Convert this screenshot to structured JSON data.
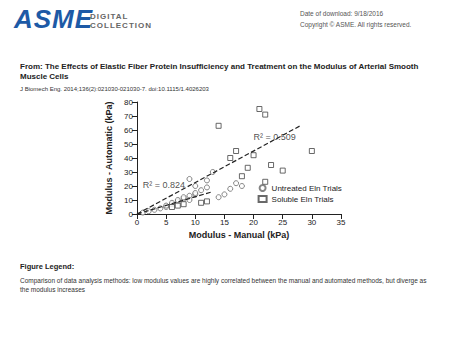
{
  "header": {
    "logo": {
      "brand": "ASME",
      "subtitle": "DIGITAL COLLECTION"
    },
    "download_date": "Date of download:  9/18/2016",
    "copyright": "Copyright © ASME. All rights reserved."
  },
  "article": {
    "from": "From: The Effects of Elastic Fiber Protein Insufficiency and Treatment on the Modulus of Arterial Smooth Muscle Cells",
    "citation": "J Biomech Eng. 2014;136(2):021030-021030-7. doi:10.1115/1.4026203"
  },
  "chart_data": {
    "type": "scatter",
    "x_label": "Modulus - Manual (kPa)",
    "y_label": "Modulus - Automatic (kPa)",
    "xlim": [
      0,
      35
    ],
    "xticks": [
      0,
      5,
      10,
      15,
      20,
      25,
      30,
      35
    ],
    "ylim": [
      0,
      80
    ],
    "yticks": [
      0,
      10,
      20,
      30,
      40,
      50,
      60,
      70,
      80
    ],
    "grid": false,
    "legend": "lower right",
    "series": [
      {
        "name": "Untreated Eln Trials",
        "color": "#666666",
        "marker": "circle",
        "x": [
          1,
          2,
          3,
          4,
          5,
          5,
          6,
          6,
          7,
          7,
          8,
          8,
          9,
          9,
          10,
          10,
          11,
          12,
          12,
          13,
          9,
          14,
          15,
          16,
          17,
          18,
          10
        ],
        "values": [
          1,
          2,
          3,
          4,
          5,
          6,
          7,
          8,
          9,
          10,
          11,
          12,
          13,
          10,
          14,
          15,
          17,
          19,
          24,
          30,
          25,
          12,
          14,
          18,
          22,
          20,
          20
        ]
      },
      {
        "name": "Soluble Eln Trials",
        "color": "#444444",
        "marker": "square",
        "x": [
          14,
          17,
          21,
          22,
          23,
          25,
          30,
          19,
          20,
          22,
          16,
          18,
          11,
          12,
          7,
          6,
          8
        ],
        "values": [
          63,
          45,
          75,
          71,
          35,
          31,
          45,
          33,
          42,
          23,
          40,
          27,
          8,
          9,
          6,
          5,
          7
        ]
      }
    ],
    "trendlines": [
      {
        "x": [
          0,
          13
        ],
        "values": [
          0,
          16
        ],
        "line_style": "dashed",
        "color": "#222222"
      },
      {
        "x": [
          0,
          28
        ],
        "values": [
          0,
          63
        ],
        "line_style": "dashed",
        "color": "#222222"
      }
    ],
    "annotations": [
      {
        "text": "R² = 0.824",
        "x": 1,
        "y": 21
      },
      {
        "text": "R² = 0.509",
        "x": 20,
        "y": 55
      }
    ]
  },
  "figure_legend": {
    "heading": "Figure Legend:",
    "text": "Comparison of data analysis methods: low modulus values are highly correlated between the manual and automated methods, but diverge as the modulus increases"
  }
}
